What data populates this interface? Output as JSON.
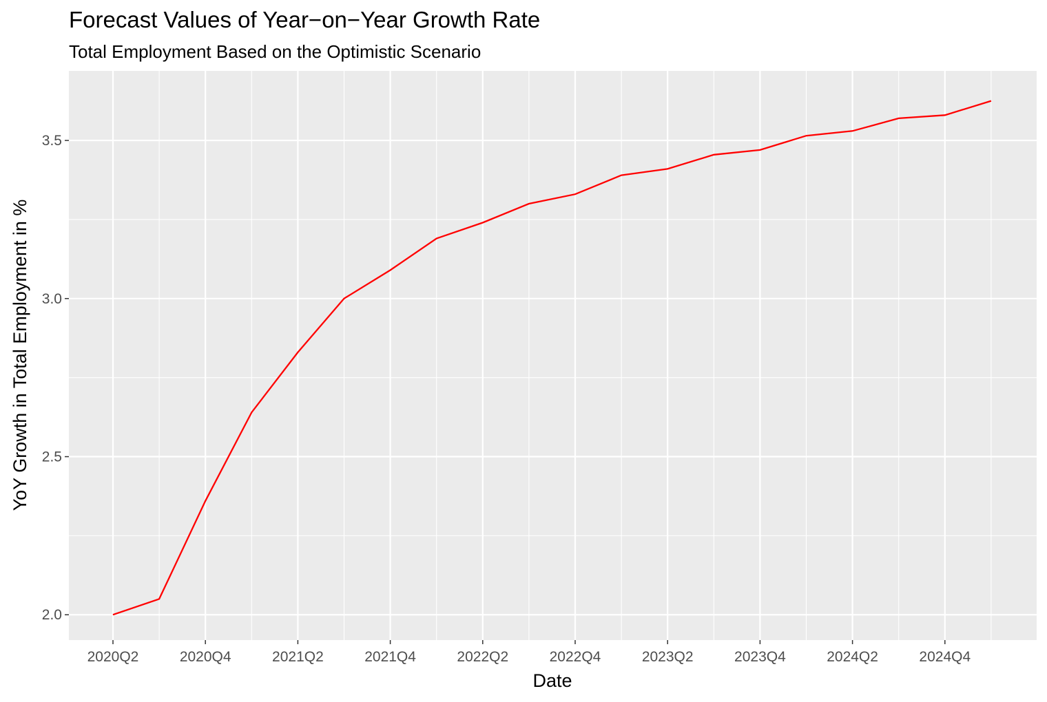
{
  "chart_data": {
    "type": "line",
    "title": "Forecast Values of Year−on−Year Growth Rate",
    "subtitle": "Total Employment Based on the Optimistic Scenario",
    "xlabel": "Date",
    "ylabel": "YoY Growth in Total Employment in %",
    "x": [
      "2020Q2",
      "2020Q3",
      "2020Q4",
      "2021Q1",
      "2021Q2",
      "2021Q3",
      "2021Q4",
      "2022Q1",
      "2022Q2",
      "2022Q3",
      "2022Q4",
      "2023Q1",
      "2023Q2",
      "2023Q3",
      "2023Q4",
      "2024Q1",
      "2024Q2",
      "2024Q3",
      "2024Q4",
      "2025Q1"
    ],
    "x_tick_labels": [
      "2020Q2",
      "2020Q4",
      "2021Q2",
      "2021Q4",
      "2022Q2",
      "2022Q4",
      "2023Q2",
      "2023Q4",
      "2024Q2",
      "2024Q4"
    ],
    "y_ticks": [
      "2.0",
      "2.5",
      "3.0",
      "3.5"
    ],
    "ylim": [
      1.92,
      3.72
    ],
    "series": [
      {
        "color": "#ff0000",
        "values": [
          2.0,
          2.05,
          2.36,
          2.64,
          2.83,
          3.0,
          3.09,
          3.19,
          3.24,
          3.3,
          3.33,
          3.39,
          3.41,
          3.455,
          3.47,
          3.515,
          3.53,
          3.57,
          3.58,
          3.625
        ]
      }
    ],
    "grid": true,
    "legend": "none"
  },
  "colors": {
    "panel_background": "#ebebeb",
    "gridline": "#ffffff",
    "series": "#ff0000"
  }
}
